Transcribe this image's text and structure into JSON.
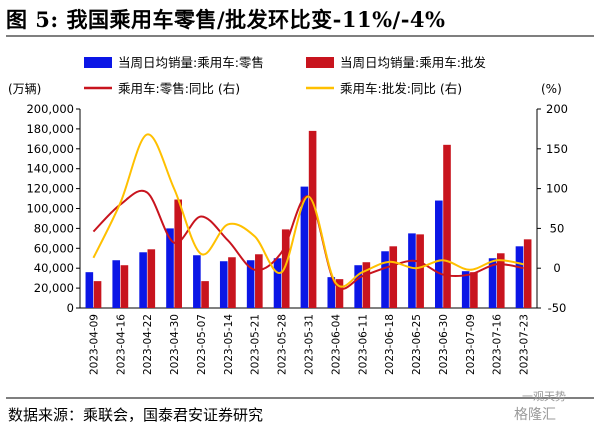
{
  "header": {
    "title": "图 5:  我国乘用车零售/批发环比变-11%/-4%"
  },
  "footer": {
    "source": "数据来源：乘联会，国泰君安证券研究"
  },
  "watermark": {
    "line1": "一观天势",
    "line2": "格隆汇"
  },
  "chart_data": {
    "type": "bar",
    "left_unit": "(万辆)",
    "right_unit": "(%)",
    "categories": [
      "2023-04-09",
      "2023-04-16",
      "2023-04-22",
      "2023-04-30",
      "2023-05-07",
      "2023-05-14",
      "2023-05-21",
      "2023-05-28",
      "2023-05-31",
      "2023-06-04",
      "2023-06-11",
      "2023-06-18",
      "2023-06-25",
      "2023-06-30",
      "2023-07-09",
      "2023-07-16",
      "2023-07-23"
    ],
    "y_left": {
      "min": 0,
      "max": 200000,
      "step": 20000,
      "ticks": [
        "0",
        "20,000",
        "40,000",
        "60,000",
        "80,000",
        "100,000",
        "120,000",
        "140,000",
        "160,000",
        "180,000",
        "200,000"
      ]
    },
    "y_right": {
      "min": -50,
      "max": 200,
      "step": 50,
      "ticks": [
        "-50",
        "0",
        "50",
        "100",
        "150",
        "200"
      ]
    },
    "series": [
      {
        "name": "当周日均销量:乘用车:零售",
        "kind": "bar",
        "axis": "left",
        "color": "#0b16e6",
        "values": [
          36000,
          48000,
          56000,
          80000,
          53000,
          47000,
          48000,
          50000,
          122000,
          31000,
          43000,
          57000,
          75000,
          108000,
          37000,
          50000,
          62000
        ]
      },
      {
        "name": "当周日均销量:乘用车:批发",
        "kind": "bar",
        "axis": "left",
        "color": "#c8141e",
        "values": [
          27000,
          43000,
          59000,
          109000,
          27000,
          51000,
          54000,
          79000,
          178000,
          29000,
          46000,
          62000,
          74000,
          164000,
          36000,
          55000,
          69000
        ]
      },
      {
        "name": "乘用车:零售:同比 (右)",
        "kind": "line",
        "axis": "right",
        "color": "#c8141e",
        "values": [
          46,
          80,
          95,
          32,
          65,
          35,
          -2,
          20,
          90,
          -20,
          -10,
          2,
          9,
          -8,
          -8,
          5,
          0
        ]
      },
      {
        "name": "乘用车:批发:同比 (右)",
        "kind": "line",
        "axis": "right",
        "color": "#ffc000",
        "values": [
          13,
          82,
          168,
          100,
          18,
          55,
          40,
          -5,
          90,
          -18,
          -5,
          8,
          0,
          10,
          -2,
          10,
          5
        ]
      }
    ]
  }
}
